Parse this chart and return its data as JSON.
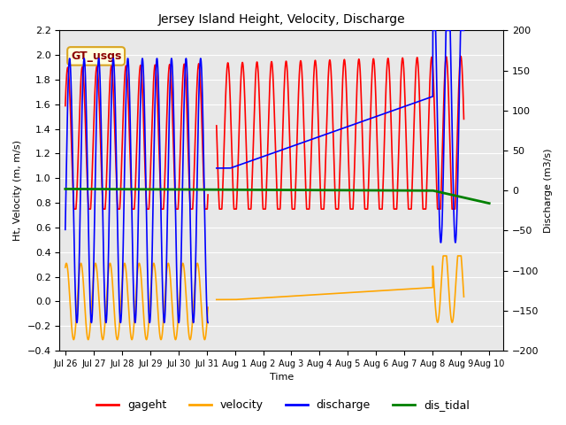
{
  "title": "Jersey Island Height, Velocity, Discharge",
  "xlabel": "Time",
  "ylabel_left": "Ht, Velocity (m, m/s)",
  "ylabel_right": "Discharge (m3/s)",
  "ylim_left": [
    -0.4,
    2.2
  ],
  "ylim_right": [
    -200,
    200
  ],
  "xlim": [
    -0.2,
    15.5
  ],
  "xtick_labels": [
    "Jul 26",
    "Jul 27",
    "Jul 28",
    "Jul 29",
    "Jul 30",
    "Jul 31",
    "Aug 1",
    "Aug 2",
    "Aug 3",
    "Aug 4",
    "Aug 5",
    "Aug 6",
    "Aug 7",
    "Aug 8",
    "Aug 9",
    "Aug 10"
  ],
  "xtick_positions": [
    0,
    1,
    2,
    3,
    4,
    5,
    6,
    7,
    8,
    9,
    10,
    11,
    12,
    13,
    14,
    15
  ],
  "legend_labels": [
    "gageht",
    "velocity",
    "discharge",
    "dis_tidal"
  ],
  "legend_colors": [
    "red",
    "orange",
    "blue",
    "green"
  ],
  "gt_usgs_label": "GT_usgs",
  "background_color": "#ffffff",
  "plot_bg_color": "#e8e8e8",
  "gageht_color": "red",
  "velocity_color": "orange",
  "discharge_color": "blue",
  "dis_tidal_color": "green",
  "line_width": 1.2
}
